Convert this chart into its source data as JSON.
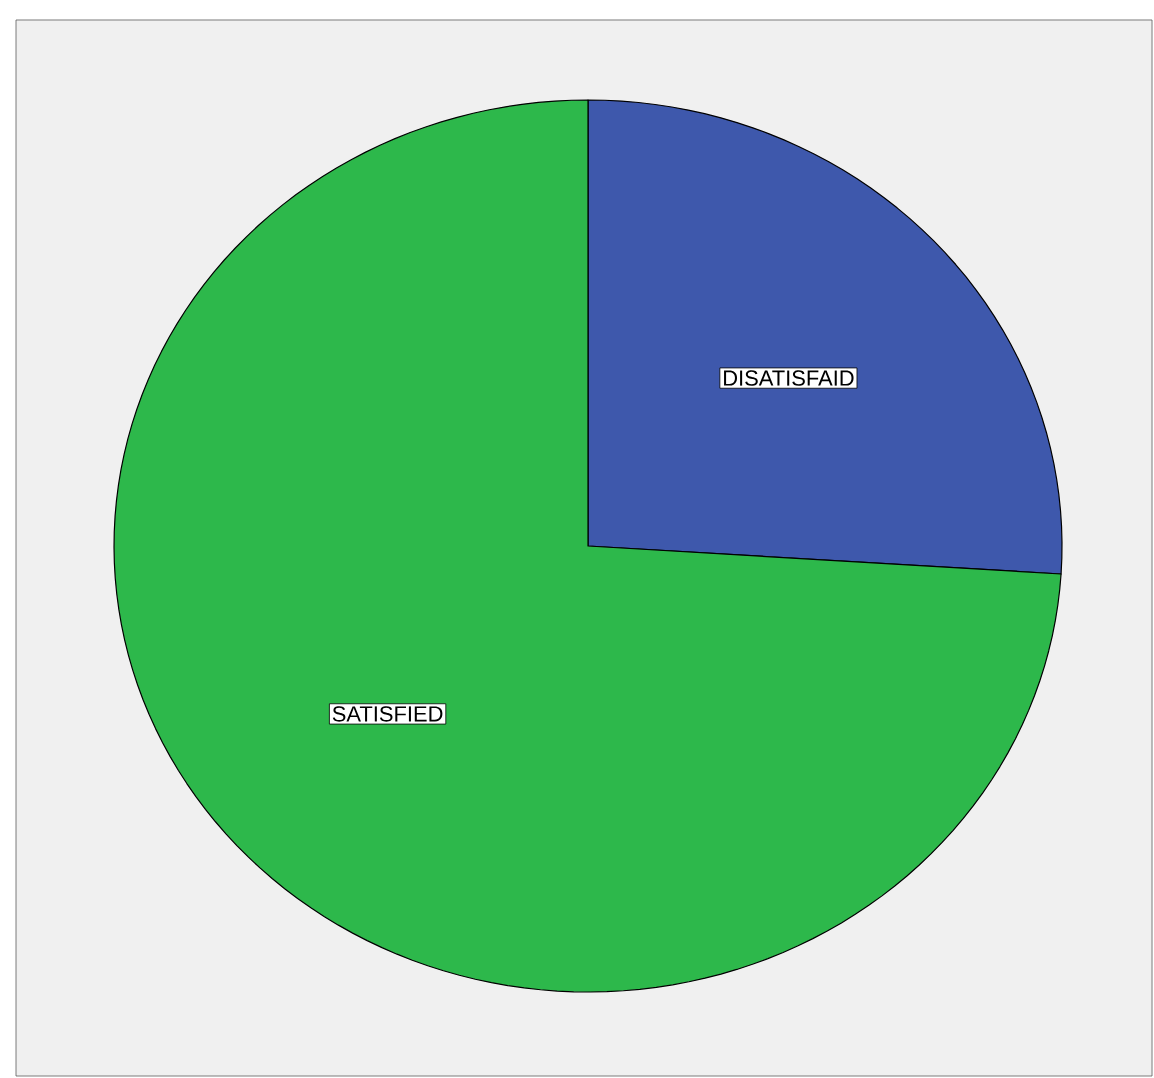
{
  "chart_data": {
    "type": "pie",
    "categories": [
      "DISATISFAID",
      "SATISFIED"
    ],
    "values": [
      26,
      74
    ],
    "colors": [
      "#3e58ac",
      "#2db84b"
    ]
  }
}
